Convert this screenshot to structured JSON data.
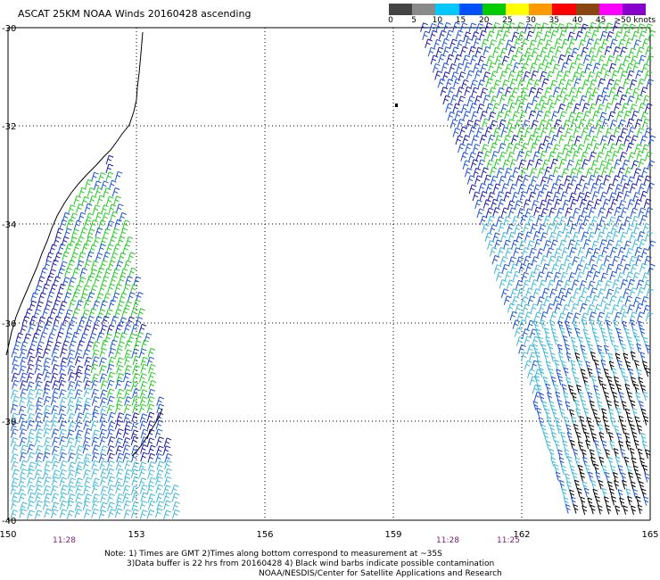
{
  "title": "ASCAT 25KM NOAA Winds 20160428 ascending",
  "speed_scale": {
    "labels": [
      "0",
      "5",
      "10",
      "15",
      "20",
      "25",
      "30",
      "35",
      "40",
      "45",
      ">50 knots"
    ],
    "colors": [
      "#444444",
      "#8a8a8a",
      "#00c8ff",
      "#0050ff",
      "#00cc00",
      "#ffff00",
      "#ff9900",
      "#ff0000",
      "#8b4513",
      "#ff00ff",
      "#8800cc"
    ]
  },
  "map": {
    "lat_labels": [
      "-30",
      "-32",
      "-34",
      "-36",
      "-38",
      "-40"
    ],
    "lon_labels": [
      "150",
      "153",
      "156",
      "159",
      "162",
      "165"
    ],
    "pass_times": [
      "11:28",
      "11:28",
      "11:25"
    ]
  },
  "notes": {
    "line1": "Note: 1) Times are GMT 2)Times along bottom correspond to measurement at ~35S",
    "line2": "3)Data buffer is 22 hrs from 20160428 4) Black wind barbs indicate possible contamination",
    "line3": "NOAA/NESDIS/Center for Satellite Applications and Research"
  },
  "colors": {
    "land_coast": "#000000",
    "grid": "#000000",
    "barb_light": "#3db8d6",
    "barb_mid": "#1c52d8",
    "barb_dark": "#1a1aa8",
    "barb_green": "#22cc22",
    "barb_black": "#000000",
    "time_label": "#7a1f6e"
  }
}
